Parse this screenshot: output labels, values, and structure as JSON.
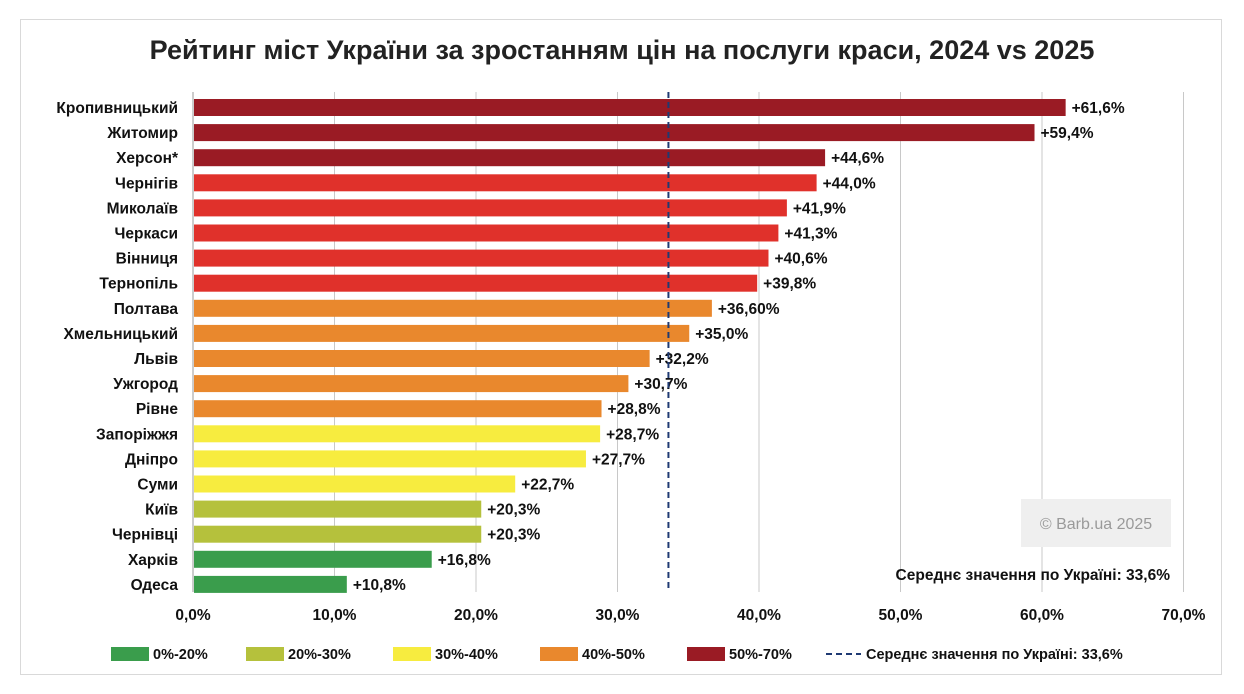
{
  "chart_data": {
    "type": "bar",
    "orientation": "horizontal",
    "title": "Рейтинг міст України за зростанням цін на послуги краси, 2024 vs 2025",
    "categories": [
      "Кропивницький",
      "Житомир",
      "Херсон*",
      "Чернігів",
      "Миколаїв",
      "Черкаси",
      "Вінниця",
      "Тернопіль",
      "Полтава",
      "Хмельницький",
      "Львів",
      "Ужгород",
      "Рівне",
      "Запоріжжя",
      "Дніпро",
      "Суми",
      "Київ",
      "Чернівці",
      "Харків",
      "Одеса"
    ],
    "values": [
      61.6,
      59.4,
      44.6,
      44.0,
      41.9,
      41.3,
      40.6,
      39.8,
      36.6,
      35.0,
      32.2,
      30.7,
      28.8,
      28.7,
      27.7,
      22.7,
      20.3,
      20.3,
      16.8,
      10.8
    ],
    "value_labels": [
      "+61,6%",
      "+59,4%",
      "+44,6%",
      "+44,0%",
      "+41,9%",
      "+41,3%",
      "+40,6%",
      "+39,8%",
      "+36,60%",
      "+35,0%",
      "+32,2%",
      "+30,7%",
      "+28,8%",
      "+28,7%",
      "+27,7%",
      "+22,7%",
      "+20,3%",
      "+20,3%",
      "+16,8%",
      "+10,8%"
    ],
    "bar_groups": [
      4,
      4,
      4,
      4,
      4,
      4,
      4,
      4,
      3,
      3,
      3,
      3,
      3,
      2,
      2,
      2,
      1,
      1,
      0,
      0
    ],
    "xlim": [
      0,
      70
    ],
    "x_ticks": [
      "0,0%",
      "10,0%",
      "20,0%",
      "30,0%",
      "40,0%",
      "50,0%",
      "60,0%",
      "70,0%"
    ],
    "grid": true,
    "average": {
      "value": 33.6,
      "label": "Середнє значення по Україні: 33,6%"
    },
    "legend": {
      "placement": "bottom",
      "items": [
        {
          "label": "0%-20%",
          "color": "#3a9d4c"
        },
        {
          "label": "20%-30%",
          "color": "#b5c13c"
        },
        {
          "label": "30%-40%",
          "color": "#f7ec3f"
        },
        {
          "label": "40%-50%",
          "color": "#e9882d"
        },
        {
          "label": "50%-70%",
          "color": "#9a1b24"
        }
      ],
      "average_item": {
        "label": "Середнє значення по Україні: 33,6%",
        "color": "#1f3a73"
      }
    },
    "colors": {
      "band_4_top": "#9a1b24",
      "band_4_rest": "#e0312b"
    },
    "watermark": "© Barb.ua 2025"
  }
}
